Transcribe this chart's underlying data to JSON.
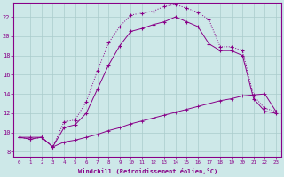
{
  "xlabel": "Windchill (Refroidissement éolien,°C)",
  "background_color": "#cde8e8",
  "grid_color": "#aacccc",
  "line_color": "#880088",
  "xlim": [
    -0.5,
    23.5
  ],
  "ylim": [
    7.5,
    23.5
  ],
  "x_ticks": [
    0,
    1,
    2,
    3,
    4,
    5,
    6,
    7,
    8,
    9,
    10,
    11,
    12,
    13,
    14,
    15,
    16,
    17,
    18,
    19,
    20,
    21,
    22,
    23
  ],
  "y_ticks": [
    8,
    10,
    12,
    14,
    16,
    18,
    20,
    22
  ],
  "line1_x": [
    0,
    1,
    2,
    3,
    4,
    5,
    6,
    7,
    8,
    9,
    10,
    11,
    12,
    13,
    14,
    15,
    16,
    17,
    18,
    19,
    20,
    21,
    22,
    23
  ],
  "line1_y": [
    9.5,
    9.3,
    9.5,
    8.5,
    11.1,
    11.3,
    13.2,
    16.4,
    19.3,
    21.0,
    22.2,
    22.4,
    22.6,
    23.1,
    23.3,
    22.9,
    22.5,
    21.7,
    18.9,
    18.9,
    18.5,
    13.8,
    12.5,
    12.2
  ],
  "line2_x": [
    0,
    1,
    2,
    3,
    4,
    5,
    6,
    7,
    8,
    9,
    10,
    11,
    12,
    13,
    14,
    15,
    16,
    17,
    18,
    19,
    20,
    21,
    22,
    23
  ],
  "line2_y": [
    9.5,
    9.3,
    9.5,
    8.5,
    10.5,
    10.8,
    12.0,
    14.5,
    17.0,
    19.0,
    20.5,
    20.8,
    21.2,
    21.5,
    22.0,
    21.5,
    21.0,
    19.2,
    18.5,
    18.5,
    18.0,
    13.5,
    12.2,
    12.0
  ],
  "line3_x": [
    0,
    1,
    2,
    3,
    4,
    5,
    6,
    7,
    8,
    9,
    10,
    11,
    12,
    13,
    14,
    15,
    16,
    17,
    18,
    19,
    20,
    21,
    22,
    23
  ],
  "line3_y": [
    9.5,
    9.5,
    9.5,
    8.5,
    9.0,
    9.2,
    9.5,
    9.8,
    10.2,
    10.5,
    10.9,
    11.2,
    11.5,
    11.8,
    12.1,
    12.4,
    12.7,
    13.0,
    13.3,
    13.5,
    13.8,
    13.9,
    14.0,
    12.2
  ]
}
